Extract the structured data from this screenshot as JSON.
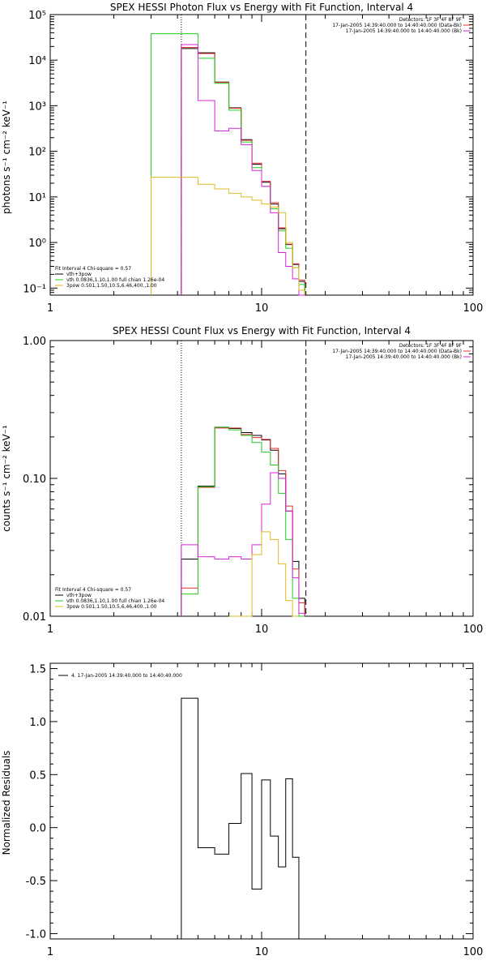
{
  "chart_data": [
    {
      "type": "line",
      "title": "SPEX HESSI Photon Flux vs Energy with Fit Function, Interval 4",
      "ylabel": "photons s⁻¹ cm⁻² keV⁻¹",
      "xscale": "log",
      "yscale": "log",
      "xlim": [
        1,
        100
      ],
      "ylim": [
        0.07,
        100000
      ],
      "x_ticks": [
        "1",
        "10",
        "100"
      ],
      "y_ticks": [
        "10⁻¹",
        "10⁰",
        "10¹",
        "10²",
        "10³",
        "10⁴",
        "10⁵"
      ],
      "y_tick_values": [
        0.1,
        1,
        10,
        100,
        1000,
        10000,
        100000
      ],
      "dotted_line_x": 4.17,
      "dashed_line_x": 16.2,
      "legend_right": [
        "Detectors: 1F 3F 4F 8F 9F",
        "17-Jan-2005 14:39:40.000 to 14:40:40.000 (Data-Bk)",
        "17-Jan-2005 14:39:40.000 to 14:40:40.000 (Bk)"
      ],
      "legend_left_title": "Fit Interval  4    Chi-square = 0.57",
      "legend_left": [
        "vth+3pow",
        "vth 0.0836,1.10,1.00  full chian 1.26e-04",
        "3pow 0.501,1.50,10.5,6.46,400.,1.00"
      ],
      "series": [
        {
          "name": "vth+3pow",
          "color": "#000000",
          "edges": [
            4.17,
            5.0,
            6.0,
            7.0,
            8.0,
            9.0,
            10.0,
            11.0,
            12.0,
            13.0,
            14.0,
            15.0,
            16.0
          ],
          "values": [
            18000,
            14500,
            3300,
            900,
            180,
            52,
            21,
            7,
            2.0,
            0.9,
            0.33,
            0.14
          ]
        },
        {
          "name": "17-Jan-2005 14:39:40.000 to 14:40:40.000 (Data-Bk)",
          "color": "#e03030",
          "edges": [
            4.17,
            5.0,
            6.0,
            7.0,
            8.0,
            9.0,
            10.0,
            11.0,
            12.0,
            13.0,
            14.0,
            15.0,
            16.0
          ],
          "values": [
            19000,
            14000,
            3250,
            880,
            175,
            55,
            22,
            7.5,
            2.1,
            0.92,
            0.34,
            0.15
          ]
        },
        {
          "name": "vth 0.0836,1.10,1.00  full chian 1.26e-04",
          "color": "#22cc22",
          "edges": [
            3.0,
            4.17,
            5.0,
            6.0,
            7.0,
            8.0,
            9.0,
            10.0,
            11.0,
            12.0,
            13.0,
            14.0,
            15.0,
            16.0
          ],
          "values": [
            38000,
            38000,
            11000,
            3100,
            800,
            160,
            44,
            17,
            5.5,
            1.8,
            0.75,
            0.28,
            0.12
          ]
        },
        {
          "name": "17-Jan-2005 14:39:40.000 to 14:40:40.000 (Bk)",
          "color": "#dd22dd",
          "edges": [
            4.17,
            5.0,
            6.0,
            7.0,
            8.0,
            9.0,
            10.0,
            11.0,
            12.0,
            13.0,
            14.0,
            15.0,
            16.0
          ],
          "values": [
            22000,
            1300,
            280,
            320,
            140,
            38,
            17,
            4.5,
            0.6,
            0.3,
            0.16,
            0.07
          ]
        },
        {
          "name": "3pow 0.501,1.50,10.5,6.46,400.,1.00",
          "color": "#ddbb22",
          "edges": [
            3.0,
            4.17,
            5.0,
            6.0,
            7.0,
            8.0,
            9.0,
            10.0,
            11.0,
            12.0,
            13.0,
            14.0,
            15.0,
            16.0
          ],
          "values": [
            27,
            27,
            19,
            15,
            12,
            10,
            8.5,
            7,
            6,
            4.5,
            1.0,
            0.28,
            0.09,
            0.065
          ]
        }
      ]
    },
    {
      "type": "line",
      "title": "SPEX HESSI Count Flux vs Energy with Fit Function, Interval 4",
      "ylabel": "counts s⁻¹ cm⁻² keV⁻¹",
      "xscale": "log",
      "yscale": "log",
      "xlim": [
        1,
        100
      ],
      "ylim": [
        0.01,
        1.0
      ],
      "x_ticks": [
        "1",
        "10",
        "100"
      ],
      "y_ticks": [
        "0.01",
        "0.10",
        "1.00"
      ],
      "y_tick_values": [
        0.01,
        0.1,
        1.0
      ],
      "dotted_line_x": 4.17,
      "dashed_line_x": 16.2,
      "legend_right": [
        "Detectors: 1F 3F 4F 8F 9F",
        "17-Jan-2005 14:39:40.000 to 14:40:40.000 (Data-Bk)",
        "17-Jan-2005 14:39:40.000 to 14:40:40.000 (Bk)"
      ],
      "legend_left_title": "Fit Interval  4    Chi-square = 0.57",
      "legend_left": [
        "vth+3pow",
        "vth 0.0836,1.10,1.00  full chian 1.26e-04",
        "3pow 0.501,1.50,10.5,6.46,400.,1.00"
      ],
      "series": [
        {
          "name": "vth+3pow",
          "color": "#000000",
          "edges": [
            4.17,
            5.0,
            6.0,
            7.0,
            8.0,
            9.0,
            10.0,
            11.0,
            12.0,
            13.0,
            14.0,
            15.0,
            16.0
          ],
          "values": [
            0.026,
            0.088,
            0.235,
            0.23,
            0.215,
            0.205,
            0.19,
            0.16,
            0.108,
            0.058,
            0.025,
            0.0135
          ]
        },
        {
          "name": "17-Jan-2005 14:39:40.000 to 14:40:40.000 (Data-Bk)",
          "color": "#e03030",
          "edges": [
            4.17,
            5.0,
            6.0,
            7.0,
            8.0,
            9.0,
            10.0,
            11.0,
            12.0,
            13.0,
            14.0,
            15.0,
            16.0
          ],
          "values": [
            0.016,
            0.086,
            0.232,
            0.232,
            0.208,
            0.198,
            0.192,
            0.165,
            0.114,
            0.063,
            0.022,
            0.0125
          ]
        },
        {
          "name": "vth 0.0836,1.10,1.00  full chian 1.26e-04",
          "color": "#22cc22",
          "edges": [
            4.17,
            5.0,
            6.0,
            7.0,
            8.0,
            9.0,
            10.0,
            11.0,
            12.0,
            13.0,
            14.0,
            15.0,
            16.0
          ],
          "values": [
            0.0145,
            0.087,
            0.235,
            0.225,
            0.205,
            0.182,
            0.155,
            0.125,
            0.078,
            0.036,
            0.0135,
            0.0095
          ]
        },
        {
          "name": "17-Jan-2005 14:39:40.000 to 14:40:40.000 (Bk)",
          "color": "#dd22dd",
          "edges": [
            4.17,
            5.0,
            6.0,
            7.0,
            8.0,
            9.0,
            10.0,
            11.0,
            12.0,
            13.0,
            14.0,
            15.0,
            16.0
          ],
          "values": [
            0.033,
            0.027,
            0.026,
            0.027,
            0.026,
            0.033,
            0.065,
            0.11,
            0.1,
            0.058,
            0.019,
            0.0105
          ]
        },
        {
          "name": "3pow 0.501,1.50,10.5,6.46,400.,1.00",
          "color": "#ddbb22",
          "edges": [
            7.0,
            8.0,
            9.0,
            10.0,
            11.0,
            12.0,
            13.0,
            14.0,
            15.0
          ],
          "values": [
            0.0085,
            0.0092,
            0.028,
            0.041,
            0.036,
            0.024,
            0.013,
            0.009
          ]
        }
      ]
    },
    {
      "type": "line",
      "title": "",
      "ylabel": "Normalized Residuals",
      "xscale": "log",
      "yscale": "linear",
      "xlim": [
        1,
        100
      ],
      "ylim": [
        -1.05,
        1.55
      ],
      "x_ticks": [
        "1",
        "10",
        "100"
      ],
      "y_ticks": [
        "-1.0",
        "-0.5",
        "0.0",
        "0.5",
        "1.0",
        "1.5"
      ],
      "y_tick_values": [
        -1.0,
        -0.5,
        0.0,
        0.5,
        1.0,
        1.5
      ],
      "legend_left_title": "",
      "legend_left": [
        "4. 17-Jan-2005 14:39:40.000 to 14:40:40.000"
      ],
      "series": [
        {
          "name": "4. 17-Jan-2005 14:39:40.000 to 14:40:40.000",
          "color": "#000000",
          "edges": [
            4.17,
            5.0,
            6.0,
            7.0,
            8.0,
            9.0,
            10.0,
            11.0,
            12.0,
            13.0,
            14.0,
            15.0,
            16.2
          ],
          "values": [
            1.22,
            -0.19,
            -0.25,
            0.04,
            0.51,
            -0.58,
            0.45,
            -0.08,
            -0.37,
            0.46,
            -0.28,
            -1.05
          ]
        }
      ]
    }
  ]
}
